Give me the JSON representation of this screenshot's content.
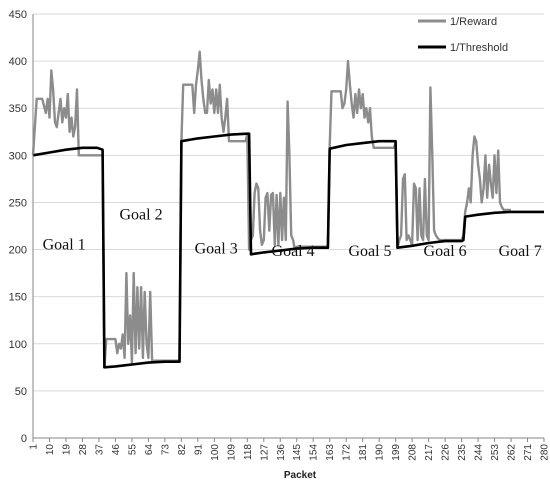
{
  "chart_data": {
    "type": "line",
    "title": "",
    "xlabel": "Packet",
    "ylabel": "",
    "xlim": [
      1,
      280
    ],
    "ylim": [
      0,
      450
    ],
    "yticks": [
      0,
      50,
      100,
      150,
      200,
      250,
      300,
      350,
      400,
      450
    ],
    "xticks": [
      1,
      10,
      19,
      28,
      37,
      46,
      55,
      64,
      73,
      82,
      91,
      100,
      109,
      118,
      127,
      136,
      145,
      154,
      163,
      172,
      181,
      190,
      199,
      208,
      217,
      226,
      235,
      244,
      253,
      262,
      271,
      280
    ],
    "grid": "horizontal",
    "legend_position": "top-right",
    "goal_labels": [
      {
        "text": "Goal 1",
        "x": 18,
        "y": 200
      },
      {
        "text": "Goal 2",
        "x": 60,
        "y": 232
      },
      {
        "text": "Goal 3",
        "x": 101,
        "y": 196
      },
      {
        "text": "Goal 4",
        "x": 143,
        "y": 193
      },
      {
        "text": "Goal 5",
        "x": 185,
        "y": 193
      },
      {
        "text": "Goal 6",
        "x": 226,
        "y": 193
      },
      {
        "text": "Goal 7",
        "x": 267,
        "y": 193
      }
    ],
    "series": [
      {
        "name": "1/Reward",
        "color": "#8c8c8c",
        "points": [
          [
            1,
            300
          ],
          [
            3,
            360
          ],
          [
            6,
            360
          ],
          [
            8,
            345
          ],
          [
            9,
            360
          ],
          [
            10,
            340
          ],
          [
            11,
            390
          ],
          [
            12,
            370
          ],
          [
            13,
            335
          ],
          [
            14,
            330
          ],
          [
            15,
            345
          ],
          [
            16,
            360
          ],
          [
            17,
            335
          ],
          [
            18,
            350
          ],
          [
            19,
            340
          ],
          [
            20,
            365
          ],
          [
            21,
            325
          ],
          [
            22,
            340
          ],
          [
            23,
            320
          ],
          [
            24,
            330
          ],
          [
            25,
            370
          ],
          [
            26,
            300
          ],
          [
            30,
            300
          ],
          [
            39,
            300
          ],
          [
            40,
            75
          ],
          [
            41,
            105
          ],
          [
            46,
            105
          ],
          [
            47,
            90
          ],
          [
            48,
            100
          ],
          [
            49,
            95
          ],
          [
            50,
            110
          ],
          [
            51,
            85
          ],
          [
            52,
            175
          ],
          [
            53,
            100
          ],
          [
            54,
            130
          ],
          [
            55,
            80
          ],
          [
            56,
            175
          ],
          [
            57,
            90
          ],
          [
            58,
            160
          ],
          [
            59,
            95
          ],
          [
            60,
            160
          ],
          [
            61,
            85
          ],
          [
            62,
            155
          ],
          [
            63,
            100
          ],
          [
            64,
            85
          ],
          [
            65,
            155
          ],
          [
            66,
            82
          ],
          [
            81,
            82
          ],
          [
            82,
            315
          ],
          [
            83,
            375
          ],
          [
            88,
            375
          ],
          [
            89,
            345
          ],
          [
            90,
            375
          ],
          [
            91,
            390
          ],
          [
            92,
            410
          ],
          [
            93,
            380
          ],
          [
            94,
            360
          ],
          [
            95,
            345
          ],
          [
            96,
            345
          ],
          [
            97,
            380
          ],
          [
            98,
            355
          ],
          [
            99,
            370
          ],
          [
            100,
            345
          ],
          [
            101,
            370
          ],
          [
            102,
            345
          ],
          [
            103,
            375
          ],
          [
            104,
            340
          ],
          [
            105,
            325
          ],
          [
            106,
            340
          ],
          [
            107,
            360
          ],
          [
            108,
            315
          ],
          [
            117,
            315
          ],
          [
            118,
            322
          ],
          [
            119,
            200
          ],
          [
            120,
            210
          ],
          [
            121,
            215
          ],
          [
            122,
            260
          ],
          [
            123,
            270
          ],
          [
            124,
            265
          ],
          [
            125,
            220
          ],
          [
            126,
            205
          ],
          [
            127,
            210
          ],
          [
            128,
            255
          ],
          [
            129,
            260
          ],
          [
            130,
            220
          ],
          [
            131,
            258
          ],
          [
            132,
            260
          ],
          [
            133,
            205
          ],
          [
            134,
            258
          ],
          [
            135,
            205
          ],
          [
            136,
            260
          ],
          [
            137,
            210
          ],
          [
            138,
            255
          ],
          [
            139,
            210
          ],
          [
            140,
            357
          ],
          [
            141,
            300
          ],
          [
            142,
            215
          ],
          [
            143,
            210
          ],
          [
            144,
            200
          ],
          [
            145,
            203
          ],
          [
            162,
            203
          ],
          [
            163,
            310
          ],
          [
            164,
            368
          ],
          [
            169,
            368
          ],
          [
            170,
            350
          ],
          [
            171,
            355
          ],
          [
            172,
            370
          ],
          [
            173,
            400
          ],
          [
            174,
            375
          ],
          [
            175,
            355
          ],
          [
            176,
            340
          ],
          [
            177,
            365
          ],
          [
            178,
            345
          ],
          [
            179,
            370
          ],
          [
            180,
            350
          ],
          [
            181,
            365
          ],
          [
            182,
            340
          ],
          [
            183,
            350
          ],
          [
            184,
            335
          ],
          [
            185,
            350
          ],
          [
            186,
            320
          ],
          [
            187,
            308
          ],
          [
            198,
            308
          ],
          [
            199,
            313
          ],
          [
            200,
            202
          ],
          [
            201,
            210
          ],
          [
            202,
            215
          ],
          [
            203,
            275
          ],
          [
            204,
            280
          ],
          [
            205,
            210
          ],
          [
            206,
            215
          ],
          [
            207,
            210
          ],
          [
            208,
            205
          ],
          [
            209,
            270
          ],
          [
            210,
            265
          ],
          [
            211,
            210
          ],
          [
            212,
            265
          ],
          [
            213,
            215
          ],
          [
            214,
            210
          ],
          [
            215,
            275
          ],
          [
            216,
            215
          ],
          [
            217,
            210
          ],
          [
            218,
            372
          ],
          [
            219,
            300
          ],
          [
            220,
            220
          ],
          [
            221,
            215
          ],
          [
            222,
            212
          ],
          [
            223,
            210
          ],
          [
            224,
            210
          ],
          [
            235,
            210
          ],
          [
            236,
            215
          ],
          [
            237,
            240
          ],
          [
            238,
            250
          ],
          [
            239,
            265
          ],
          [
            240,
            250
          ],
          [
            241,
            300
          ],
          [
            242,
            320
          ],
          [
            243,
            315
          ],
          [
            244,
            290
          ],
          [
            245,
            275
          ],
          [
            246,
            250
          ],
          [
            247,
            265
          ],
          [
            248,
            300
          ],
          [
            249,
            255
          ],
          [
            250,
            290
          ],
          [
            251,
            270
          ],
          [
            252,
            255
          ],
          [
            253,
            300
          ],
          [
            254,
            260
          ],
          [
            255,
            305
          ],
          [
            256,
            250
          ],
          [
            257,
            245
          ],
          [
            258,
            242
          ],
          [
            262,
            242
          ]
        ]
      },
      {
        "name": "1/Threshold",
        "color": "#000000",
        "points": [
          [
            1,
            300
          ],
          [
            10,
            303
          ],
          [
            19,
            306
          ],
          [
            28,
            308
          ],
          [
            36,
            308
          ],
          [
            39,
            306
          ],
          [
            40,
            75
          ],
          [
            46,
            76
          ],
          [
            55,
            78
          ],
          [
            64,
            80
          ],
          [
            73,
            81
          ],
          [
            81,
            81
          ],
          [
            82,
            315
          ],
          [
            91,
            318
          ],
          [
            100,
            320
          ],
          [
            109,
            322
          ],
          [
            118,
            323
          ],
          [
            119,
            323
          ],
          [
            120,
            195
          ],
          [
            127,
            197
          ],
          [
            136,
            199
          ],
          [
            145,
            201
          ],
          [
            154,
            202
          ],
          [
            162,
            202
          ],
          [
            163,
            307
          ],
          [
            172,
            311
          ],
          [
            181,
            313
          ],
          [
            190,
            315
          ],
          [
            199,
            315
          ],
          [
            200,
            202
          ],
          [
            208,
            204
          ],
          [
            217,
            207
          ],
          [
            226,
            209
          ],
          [
            235,
            209
          ],
          [
            236,
            210
          ],
          [
            237,
            235
          ],
          [
            244,
            237
          ],
          [
            253,
            239
          ],
          [
            262,
            240
          ],
          [
            271,
            240
          ],
          [
            280,
            240
          ]
        ]
      }
    ]
  }
}
